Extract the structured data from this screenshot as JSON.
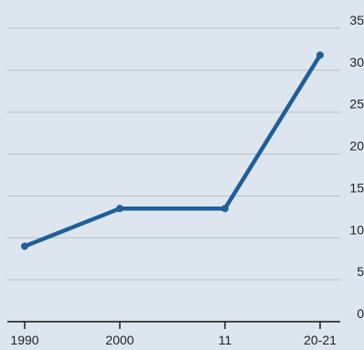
{
  "chart_data": {
    "type": "line",
    "categories": [
      "1990",
      "2000",
      "11",
      "20-21"
    ],
    "series": [
      {
        "values": [
          9,
          13.5,
          13.5,
          31.8
        ]
      }
    ],
    "ylim": [
      0,
      35
    ],
    "yticks": [
      "0",
      "5",
      "10",
      "15",
      "20",
      "25",
      "30",
      "35"
    ],
    "grid": true,
    "y_axis_side": "right",
    "line_color": "#1f5f9a",
    "grid_color": "#b4c0cc",
    "background_color": "#dde6ee"
  }
}
